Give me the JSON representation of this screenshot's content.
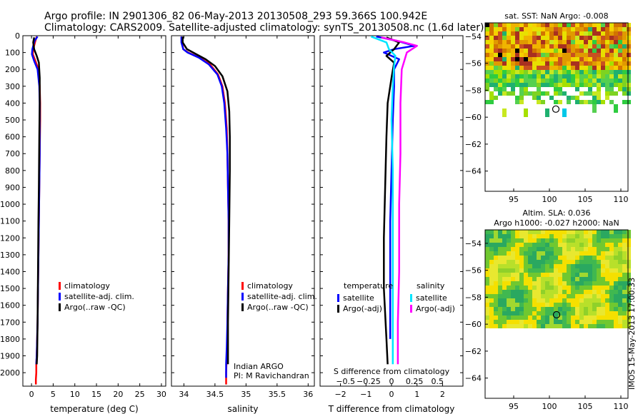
{
  "title_line1": "Argo profile: IN 2901306_82 06-May-2013 20130508_293 59.366S 100.942E",
  "title_line2": "Climatology: CARS2009. Satellite-adjusted climatology: synTS_20130508.nc (1.6d later)",
  "credit": "IMOS 15-May-2013 17:00:33",
  "colors": {
    "climatology": "#ff0000",
    "satellite": "#0000ff",
    "argo": "#000000",
    "satellite_s": "#00e5ff",
    "argo_s": "#ff00ff"
  },
  "chart_data": [
    {
      "type": "line",
      "xlabel": "temperature (deg C)",
      "xlim": [
        -2,
        31
      ],
      "xticks": [
        0,
        5,
        10,
        15,
        20,
        25,
        30
      ],
      "ylim": [
        2080,
        0
      ],
      "yticks": [
        0,
        100,
        200,
        300,
        400,
        500,
        600,
        700,
        800,
        900,
        1000,
        1100,
        1200,
        1300,
        1400,
        1500,
        1600,
        1700,
        1800,
        1900,
        2000
      ],
      "legend": [
        "climatology",
        "satellite-adj. clim.",
        "Argo(..raw -QC)"
      ],
      "series": [
        {
          "name": "climatology",
          "color": "#ff0000",
          "x": [
            1.2,
            0.9,
            0.4,
            0.3,
            0.9,
            1.6,
            1.9,
            2.0,
            2.0,
            1.9,
            1.8,
            1.7,
            1.6,
            1.5,
            1.4,
            1.3,
            1.2,
            1.1,
            1.1,
            1.0,
            1.0
          ],
          "y": [
            5,
            30,
            80,
            110,
            150,
            200,
            300,
            400,
            500,
            700,
            900,
            1100,
            1300,
            1500,
            1700,
            1800,
            1900,
            1950,
            2000,
            2040,
            2070
          ]
        },
        {
          "name": "satellite-adj. clim.",
          "color": "#0000ff",
          "x": [
            1.4,
            0.7,
            0.2,
            0.1,
            0.6,
            1.4,
            1.8,
            1.9,
            1.9,
            1.9,
            1.8,
            1.7,
            1.6,
            1.5,
            1.4,
            1.3,
            1.2,
            1.1
          ],
          "y": [
            5,
            30,
            80,
            110,
            150,
            200,
            300,
            400,
            500,
            700,
            900,
            1100,
            1300,
            1500,
            1700,
            1800,
            1900,
            1950
          ]
        },
        {
          "name": "Argo(..raw -QC)",
          "color": "#000000",
          "x": [
            0.6,
            0.4,
            0.6,
            1.2,
            1.7,
            1.9,
            1.9,
            1.8,
            1.7,
            1.6,
            1.5,
            1.4,
            1.3,
            1.2
          ],
          "y": [
            10,
            40,
            80,
            120,
            160,
            250,
            400,
            600,
            900,
            1100,
            1400,
            1700,
            1900,
            1950
          ]
        }
      ]
    },
    {
      "type": "line",
      "xlabel": "salinity",
      "xlim": [
        33.8,
        36.1
      ],
      "xticks": [
        34,
        34.5,
        35,
        35.5,
        36
      ],
      "xticklabels": [
        "34",
        "34.5",
        "35",
        "35.5",
        "36"
      ],
      "ylim": [
        2080,
        0
      ],
      "legend": [
        "climatology",
        "satellite-adj. clim.",
        "Argo(..raw -QC)"
      ],
      "annotation": [
        "Indian ARGO",
        "PI: M Ravichandran"
      ],
      "series": [
        {
          "name": "climatology",
          "color": "#ff0000",
          "x": [
            33.96,
            33.97,
            33.99,
            34.07,
            34.25,
            34.42,
            34.55,
            34.62,
            34.66,
            34.69,
            34.7,
            34.71,
            34.72,
            34.72,
            34.71,
            34.7,
            34.7,
            34.69,
            34.68,
            34.68
          ],
          "y": [
            5,
            40,
            80,
            100,
            130,
            170,
            230,
            300,
            400,
            550,
            700,
            900,
            1100,
            1300,
            1500,
            1700,
            1800,
            1900,
            2000,
            2070
          ]
        },
        {
          "name": "satellite-adj. clim.",
          "color": "#0000ff",
          "x": [
            33.96,
            33.96,
            33.99,
            34.06,
            34.24,
            34.4,
            34.54,
            34.61,
            34.65,
            34.68,
            34.7,
            34.71,
            34.72,
            34.72,
            34.71,
            34.7,
            34.69,
            34.68,
            34.68
          ],
          "y": [
            5,
            40,
            80,
            100,
            130,
            170,
            230,
            300,
            400,
            550,
            700,
            900,
            1100,
            1300,
            1500,
            1700,
            1850,
            1950,
            2030
          ]
        },
        {
          "name": "Argo(..raw -QC)",
          "color": "#000000",
          "x": [
            33.98,
            33.98,
            34.05,
            34.2,
            34.35,
            34.5,
            34.62,
            34.7,
            34.73,
            34.74,
            34.74,
            34.73,
            34.72,
            34.71,
            34.71
          ],
          "y": [
            5,
            40,
            80,
            110,
            140,
            180,
            240,
            330,
            450,
            600,
            800,
            1100,
            1400,
            1700,
            1950
          ]
        }
      ]
    },
    {
      "type": "line",
      "xlabel": "T difference from climatology",
      "xlabel_top": "S difference from climatology",
      "xlim": [
        -2.8,
        2.8
      ],
      "xticks": [
        -2,
        -1,
        0,
        1,
        2
      ],
      "xticklabels": [
        "−2",
        "−1",
        "0",
        "1",
        "2"
      ],
      "xticks_top": [
        -0.5,
        -0.25,
        0,
        0.25,
        0.5
      ],
      "xticklabels_top": [
        "−0.5",
        "−0.25",
        "0",
        "0.25",
        "0.5"
      ],
      "ylim": [
        2080,
        0
      ],
      "legend_left_title": "temperature",
      "legend_right_title": "salinity",
      "legend": [
        "satellite",
        "Argo(-adj)",
        "satellite",
        "Argo(-adj)"
      ],
      "series": [
        {
          "name": "satellite",
          "color": "#0000ff",
          "x": [
            -0.6,
            0.2,
            0.9,
            0.1,
            -0.3,
            0.3,
            0.1,
            0.1,
            0.05,
            0.0,
            -0.05,
            -0.05,
            -0.05
          ],
          "y": [
            5,
            30,
            60,
            80,
            100,
            140,
            200,
            300,
            500,
            800,
            1100,
            1400,
            1800
          ]
        },
        {
          "name": "Argo(-adj)",
          "color": "#000000",
          "x": [
            -0.2,
            0.3,
            0.1,
            -0.2,
            0.1,
            0.0,
            -0.15,
            -0.2,
            -0.25,
            -0.3,
            -0.3,
            -0.2,
            -0.15
          ],
          "y": [
            10,
            40,
            80,
            120,
            160,
            250,
            400,
            600,
            900,
            1200,
            1500,
            1800,
            1950
          ]
        },
        {
          "name": "satellite",
          "color": "#00e5ff",
          "x": [
            -0.8,
            -0.2,
            -0.1,
            0.15,
            0.1,
            0.05,
            0.0,
            0.05,
            0.05,
            0.05,
            0.05,
            0.05
          ],
          "y": [
            5,
            40,
            80,
            120,
            180,
            300,
            500,
            800,
            1100,
            1400,
            1700,
            1950
          ]
        },
        {
          "name": "Argo(-adj)",
          "color": "#ff00ff",
          "x": [
            -0.4,
            0.5,
            1.0,
            0.6,
            0.4,
            0.35,
            0.35,
            0.3,
            0.3,
            0.25,
            0.25
          ],
          "y": [
            10,
            40,
            60,
            100,
            200,
            400,
            700,
            1000,
            1400,
            1700,
            1950
          ]
        }
      ]
    },
    {
      "type": "heatmap",
      "title": "sat. SST: NaN Argo: -0.008",
      "xlim": [
        91,
        111
      ],
      "ylim": [
        -65.5,
        -53
      ],
      "xticks": [
        95,
        100,
        105,
        110
      ],
      "yticks": [
        -54,
        -56,
        -58,
        -60,
        -62,
        -64
      ],
      "yticklabels": [
        "−54",
        "−56",
        "−58",
        "−60",
        "−62",
        "−64"
      ],
      "marker": [
        100.9,
        -59.4
      ]
    },
    {
      "type": "heatmap",
      "title_line1": "Altim. SLA: 0.036",
      "title_line2": "Argo h1000: -0.027 h2000: NaN",
      "xlim": [
        91,
        111
      ],
      "ylim": [
        -65.5,
        -53
      ],
      "xticks": [
        95,
        100,
        105,
        110
      ],
      "yticks": [
        -54,
        -56,
        -58,
        -60,
        -62,
        -64
      ],
      "yticklabels": [
        "−54",
        "−56",
        "−58",
        "−60",
        "−62",
        "−64"
      ],
      "marker": [
        101.0,
        -59.3
      ]
    }
  ]
}
